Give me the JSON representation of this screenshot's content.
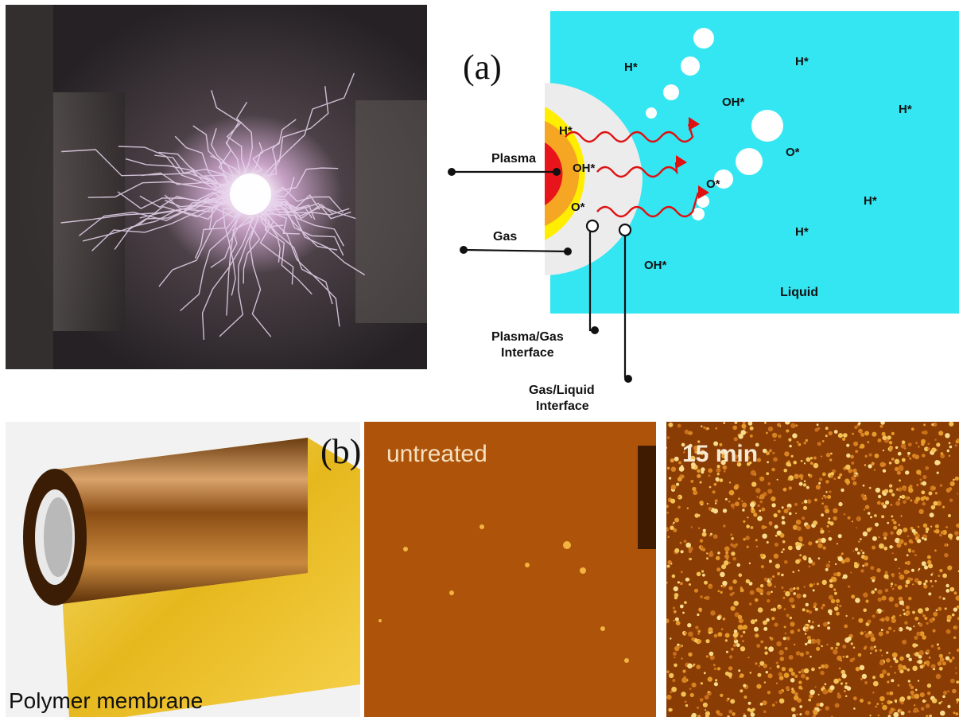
{
  "panel_a": {
    "label": "(a)",
    "species": {
      "h1": "H*",
      "h2": "H*",
      "h3": "H*",
      "h4": "H*",
      "h5": "H*",
      "h6": "H*",
      "oh1": "OH*",
      "oh2": "OH*",
      "oh3": "OH*",
      "o1": "O*",
      "o2": "O*",
      "o3": "O*"
    },
    "labels": {
      "plasma": "Plasma",
      "gas": "Gas",
      "liquid": "Liquid",
      "plasma_gas_1": "Plasma/Gas",
      "plasma_gas_2": "Interface",
      "gas_liquid_1": "Gas/Liquid",
      "gas_liquid_2": "Interface"
    },
    "colors": {
      "liquid": "#33e6f2",
      "plasma_core": "#e8141b",
      "plasma_mid": "#f5a623",
      "plasma_outer": "#ffee00",
      "arrow": "#e01010"
    }
  },
  "panel_b": {
    "label": "(b)",
    "membrane_caption": "Polymer membrane",
    "untreated_label": "untreated",
    "treated_label": "15  min"
  }
}
